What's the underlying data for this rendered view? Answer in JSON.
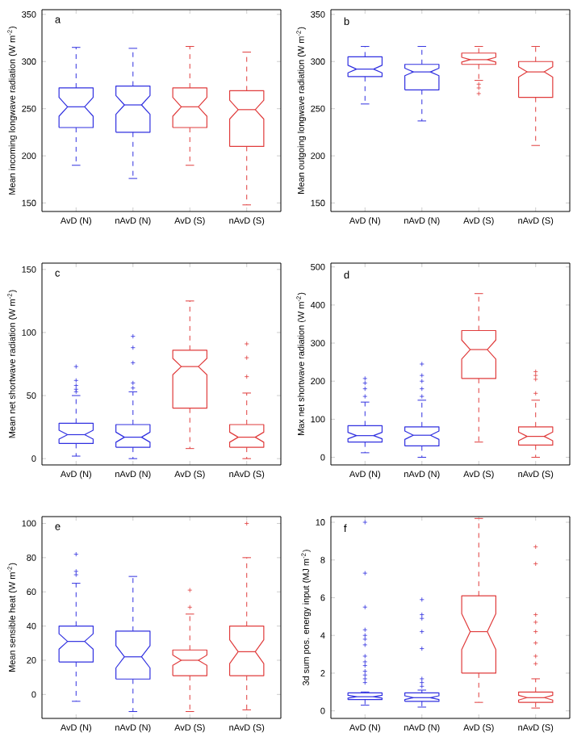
{
  "chart_data": [
    {
      "type": "box",
      "title": "a",
      "ylabel": "Mean incoming longwave radiation  (W m$^{-2}$)",
      "categories": [
        "AvD (N)",
        "nAvD (N)",
        "AvD (S)",
        "nAvD (S)"
      ],
      "colors": [
        "#3030e0",
        "#3030e0",
        "#e03c3c",
        "#e03c3c"
      ],
      "ylim": [
        141,
        355
      ],
      "yticks": [
        150,
        200,
        250,
        300,
        350
      ],
      "marker": "cross",
      "boxes": [
        {
          "low": 190,
          "q1": 230,
          "median": 252,
          "q3": 272,
          "high": 315
        },
        {
          "low": 176,
          "q1": 225,
          "median": 254,
          "q3": 274,
          "high": 314
        },
        {
          "low": 190,
          "q1": 230,
          "median": 252,
          "q3": 272,
          "high": 316
        },
        {
          "low": 148,
          "q1": 210,
          "median": 249,
          "q3": 269,
          "high": 310
        }
      ]
    },
    {
      "type": "box",
      "title": "b",
      "ylabel": "Mean outgoing longwave radiation  (W m$^{-2}$)",
      "categories": [
        "AvD (N)",
        "nAvD (N)",
        "AvD (S)",
        "nAvD (S)"
      ],
      "colors": [
        "#3030e0",
        "#3030e0",
        "#e03c3c",
        "#e03c3c"
      ],
      "ylim": [
        141,
        355
      ],
      "yticks": [
        150,
        200,
        250,
        300,
        350
      ],
      "marker": "cross",
      "boxes": [
        {
          "low": 255,
          "q1": 284,
          "median": 292,
          "q3": 305,
          "high": 316
        },
        {
          "low": 237,
          "q1": 270,
          "median": 289,
          "q3": 297,
          "high": 316
        },
        {
          "low": 280,
          "q1": 297,
          "median": 302,
          "q3": 309,
          "high": 316,
          "outliers": [
            276,
            272,
            266
          ]
        },
        {
          "low": 211,
          "q1": 262,
          "median": 289,
          "q3": 300,
          "high": 316
        }
      ]
    },
    {
      "type": "box",
      "title": "c",
      "ylabel": "Mean net shortwave radiation  (W m$^{-2}$)",
      "categories": [
        "AvD (N)",
        "nAvD (N)",
        "AvD (S)",
        "nAvD (S)"
      ],
      "colors": [
        "#3030e0",
        "#3030e0",
        "#e03c3c",
        "#e03c3c"
      ],
      "ylim": [
        -5,
        155
      ],
      "yticks": [
        0,
        50,
        100,
        150
      ],
      "marker": "cross",
      "boxes": [
        {
          "low": 2,
          "q1": 12,
          "median": 19,
          "q3": 28,
          "high": 50,
          "outliers": [
            53,
            55,
            58,
            62,
            73
          ]
        },
        {
          "low": 0,
          "q1": 9,
          "median": 17,
          "q3": 27,
          "high": 53,
          "outliers": [
            56,
            60,
            76,
            88,
            97
          ]
        },
        {
          "low": 8,
          "q1": 40,
          "median": 73,
          "q3": 86,
          "high": 125
        },
        {
          "low": 0,
          "q1": 9,
          "median": 17,
          "q3": 27,
          "high": 52,
          "outliers": [
            65,
            80,
            91
          ]
        }
      ]
    },
    {
      "type": "box",
      "title": "d",
      "ylabel": "Max net shortwave radiation  (W m$^{-2}$)",
      "categories": [
        "AvD (N)",
        "nAvD (N)",
        "AvD (S)",
        "nAvD (S)"
      ],
      "colors": [
        "#3030e0",
        "#3030e0",
        "#e03c3c",
        "#e03c3c"
      ],
      "ylim": [
        -20,
        510
      ],
      "yticks": [
        0,
        100,
        200,
        300,
        400,
        500
      ],
      "marker": "cross",
      "boxes": [
        {
          "low": 12,
          "q1": 40,
          "median": 57,
          "q3": 83,
          "high": 145,
          "outliers": [
            160,
            180,
            195,
            207
          ]
        },
        {
          "low": 0,
          "q1": 30,
          "median": 58,
          "q3": 80,
          "high": 150,
          "outliers": [
            160,
            180,
            200,
            215,
            245
          ]
        },
        {
          "low": 40,
          "q1": 207,
          "median": 283,
          "q3": 333,
          "high": 430
        },
        {
          "low": 0,
          "q1": 32,
          "median": 55,
          "q3": 80,
          "high": 150,
          "outliers": [
            168,
            205,
            215,
            225
          ]
        }
      ]
    },
    {
      "type": "box",
      "title": "e",
      "ylabel": "Mean sensible heat (W m$^{-2}$)",
      "categories": [
        "AvD (N)",
        "nAvD (N)",
        "AvD (S)",
        "nAvD (S)"
      ],
      "colors": [
        "#3030e0",
        "#3030e0",
        "#e03c3c",
        "#e03c3c"
      ],
      "ylim": [
        -14,
        104
      ],
      "yticks": [
        0,
        20,
        40,
        60,
        80,
        100
      ],
      "marker": "cross",
      "boxes": [
        {
          "low": -4,
          "q1": 19,
          "median": 31,
          "q3": 40,
          "high": 65,
          "outliers": [
            70,
            72,
            82
          ]
        },
        {
          "low": -10,
          "q1": 9,
          "median": 22,
          "q3": 37,
          "high": 69
        },
        {
          "low": -10,
          "q1": 11,
          "median": 20,
          "q3": 26,
          "high": 47,
          "outliers": [
            51,
            61
          ]
        },
        {
          "low": -9,
          "q1": 11,
          "median": 25,
          "q3": 40,
          "high": 80,
          "outliers": [
            100
          ]
        }
      ]
    },
    {
      "type": "box",
      "title": "f",
      "ylabel": "3d sum pos. energy input (MJ m$^{-2}$)",
      "categories": [
        "AvD (N)",
        "nAvD (N)",
        "AvD (S)",
        "nAvD (S)"
      ],
      "colors": [
        "#3030e0",
        "#3030e0",
        "#e03c3c",
        "#e03c3c"
      ],
      "ylim": [
        -0.4,
        10.3
      ],
      "yticks": [
        0,
        2,
        4,
        6,
        8,
        10
      ],
      "marker": "cross",
      "boxes": [
        {
          "low": 0.3,
          "q1": 0.6,
          "median": 0.75,
          "q3": 0.95,
          "high": 1.0,
          "outliers": [
            1.5,
            1.7,
            1.9,
            2.1,
            2.4,
            2.6,
            2.9,
            3.5,
            3.8,
            4.0,
            4.3,
            5.5,
            7.3,
            10.0
          ]
        },
        {
          "low": 0.2,
          "q1": 0.5,
          "median": 0.7,
          "q3": 0.95,
          "high": 1.1,
          "outliers": [
            1.3,
            1.5,
            1.7,
            3.3,
            4.2,
            4.9,
            5.1,
            5.9
          ]
        },
        {
          "low": 0.45,
          "q1": 2.0,
          "median": 4.2,
          "q3": 6.1,
          "high": 10.2
        },
        {
          "low": 0.15,
          "q1": 0.45,
          "median": 0.7,
          "q3": 1.0,
          "high": 1.7,
          "outliers": [
            2.5,
            2.9,
            3.6,
            4.2,
            4.7,
            5.1,
            7.8,
            8.7
          ]
        }
      ]
    }
  ]
}
